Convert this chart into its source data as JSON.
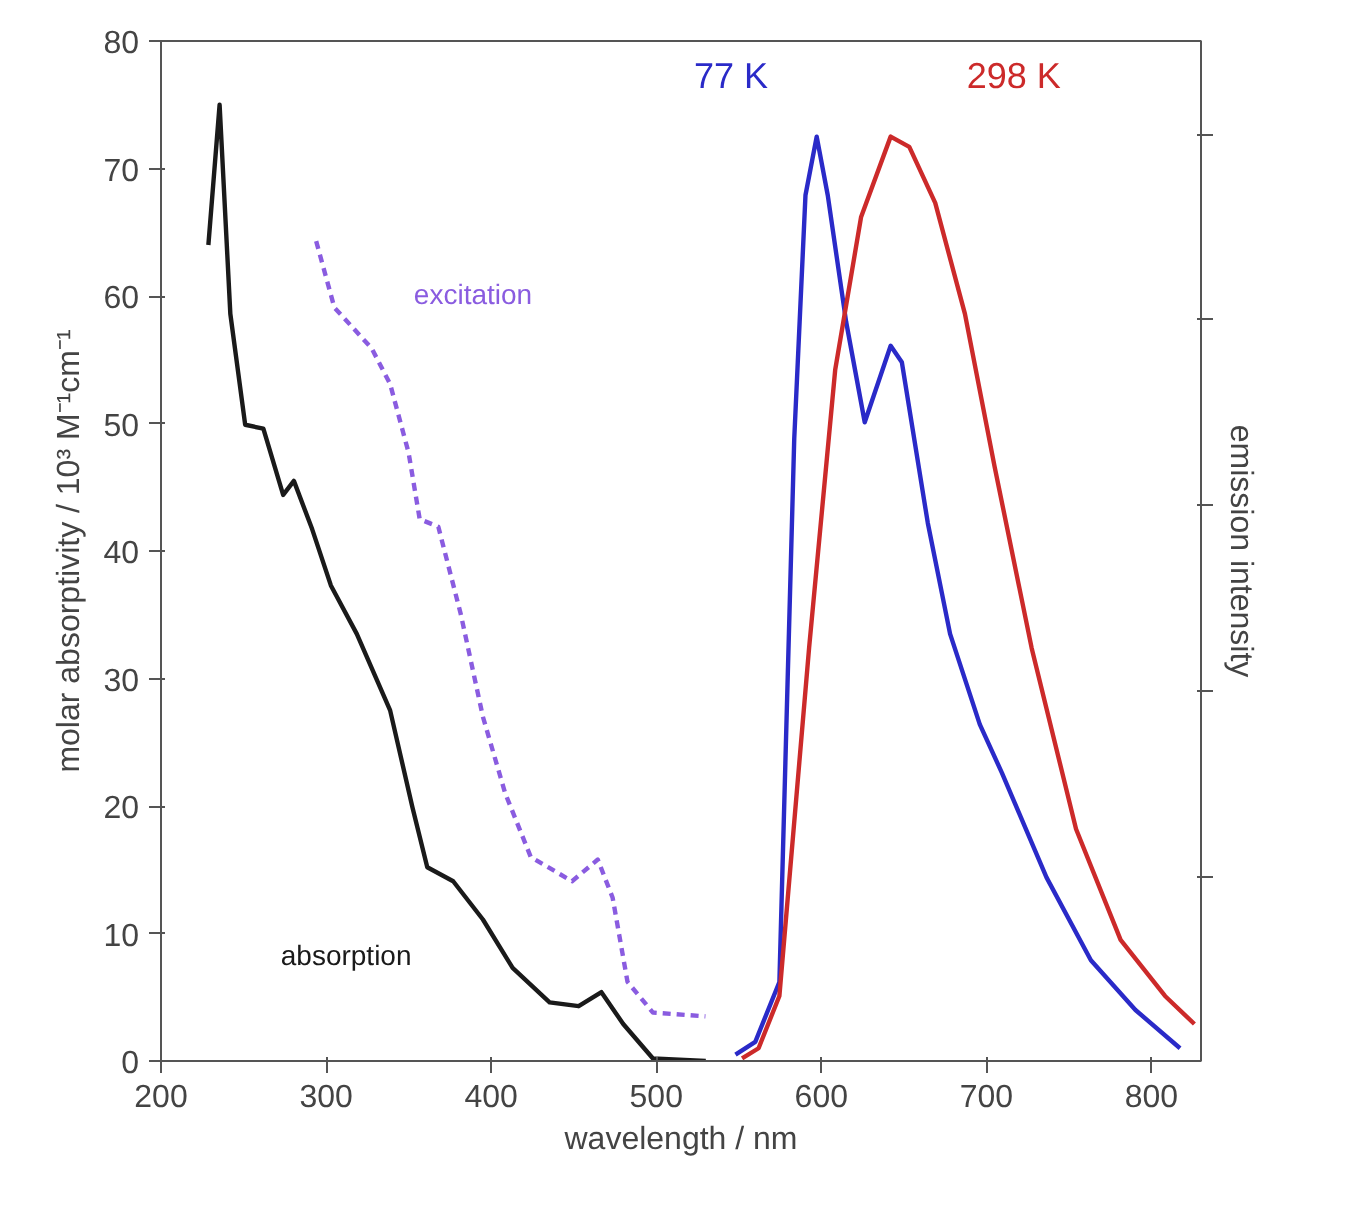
{
  "chart_data": {
    "type": "line",
    "xlabel": "wavelength / nm",
    "ylabel": "molar absorptivity / 10³ M⁻¹cm⁻¹",
    "y2label": "emission intensity",
    "xlim": [
      200,
      830
    ],
    "ylim": [
      0,
      80
    ],
    "xticks": [
      200,
      300,
      400,
      500,
      600,
      700,
      800
    ],
    "yticks": [
      0,
      10,
      20,
      30,
      40,
      50,
      60,
      70,
      80
    ],
    "grid": false,
    "marker": "none",
    "series": [
      {
        "name": "absorption",
        "color": "#1a1a1a",
        "line_style": "solid",
        "x": [
          228.7,
          235.5,
          242,
          251,
          262,
          274,
          280.5,
          291.6,
          302.9,
          318.6,
          338.8,
          352.3,
          361.3,
          377,
          395,
          413,
          435.4,
          453,
          466.8,
          480,
          498,
          530
        ],
        "values": [
          64.0,
          75.0,
          58.6,
          49.9,
          49.6,
          44.4,
          45.5,
          41.7,
          37.3,
          33.5,
          27.5,
          19.9,
          15.2,
          14.1,
          11.1,
          7.3,
          4.6,
          4.3,
          5.4,
          2.9,
          0.2,
          0
        ]
      },
      {
        "name": "excitation",
        "color": "#8a5ce0",
        "line_style": "dashed",
        "x": [
          294,
          305,
          327.6,
          338.8,
          350,
          356.7,
          368,
          381.5,
          395,
          408.5,
          424,
          449,
          464.6,
          473.6,
          482.6,
          498,
          529.8
        ],
        "values": [
          64.3,
          59.1,
          55.9,
          53.1,
          47.7,
          42.5,
          41.9,
          35.1,
          27.0,
          21.0,
          16.0,
          14.1,
          15.8,
          12.8,
          6.2,
          3.8,
          3.5
        ]
      },
      {
        "name": "77 K",
        "color": "#2a2ac8",
        "line_style": "solid",
        "x": [
          548,
          560,
          574.6,
          583.6,
          590.4,
          597.2,
          603.9,
          615,
          626.3,
          642,
          648.8,
          664.5,
          678,
          696,
          709.4,
          736.4,
          763.3,
          790.3,
          817.3
        ],
        "values": [
          0.5,
          1.5,
          6.2,
          48.8,
          67.9,
          72.5,
          67.9,
          58.0,
          50.1,
          56.1,
          54.8,
          42.2,
          33.5,
          26.4,
          22.6,
          14.4,
          7.9,
          4.0,
          1.0
        ]
      },
      {
        "name": "298 K",
        "color": "#cc2a2a",
        "line_style": "solid",
        "x": [
          552,
          562,
          574.6,
          592.6,
          608.4,
          624.1,
          642,
          653.3,
          669,
          687,
          705,
          727.4,
          754.3,
          781.3,
          808.2,
          826
        ],
        "values": [
          0.2,
          1.0,
          5.1,
          32.4,
          54.2,
          66.2,
          72.5,
          71.7,
          67.3,
          58.6,
          46.6,
          32.4,
          18.2,
          9.5,
          5.1,
          2.9
        ]
      }
    ]
  }
}
